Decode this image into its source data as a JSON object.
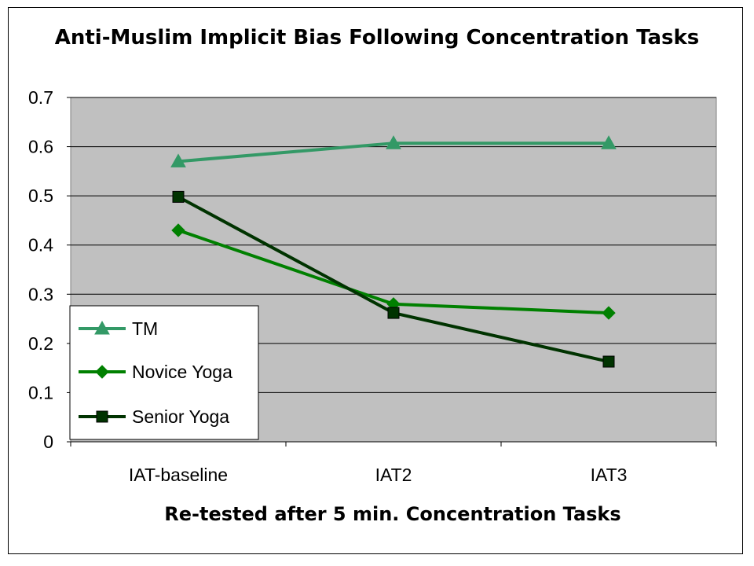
{
  "chart_data": {
    "type": "line",
    "title": "Anti-Muslim Implicit Bias Following Concentration Tasks",
    "xlabel": "Re-tested after 5 min. Concentration Tasks",
    "ylabel": "",
    "categories": [
      "IAT-baseline",
      "IAT2",
      "IAT3"
    ],
    "ylim": [
      0,
      0.7
    ],
    "yticks": [
      "0",
      "0.1",
      "0.2",
      "0.3",
      "0.4",
      "0.5",
      "0.6",
      "0.7"
    ],
    "grid": true,
    "legend_position": "bottom-left",
    "plot_background": "#c0c0c0",
    "series": [
      {
        "name": "TM",
        "values": [
          0.57,
          0.607,
          0.607
        ],
        "color": "#339966",
        "marker": "triangle"
      },
      {
        "name": "Novice Yoga",
        "values": [
          0.43,
          0.28,
          0.262
        ],
        "color": "#008000",
        "marker": "diamond"
      },
      {
        "name": "Senior Yoga",
        "values": [
          0.498,
          0.262,
          0.163
        ],
        "color": "#003300",
        "marker": "square"
      }
    ]
  }
}
